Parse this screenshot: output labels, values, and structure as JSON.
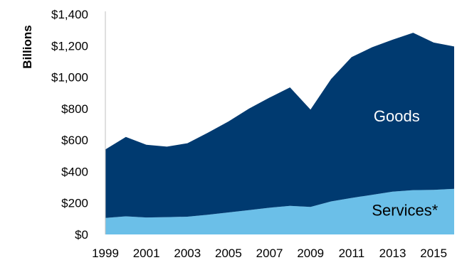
{
  "chart_data": {
    "type": "area",
    "stacked": true,
    "ylabel": "Billions",
    "ylim": [
      0,
      1400
    ],
    "yticks": [
      0,
      200,
      400,
      600,
      800,
      1000,
      1200,
      1400
    ],
    "ytick_labels": [
      "$0",
      "$200",
      "$400",
      "$600",
      "$800",
      "$1,000",
      "$1,200",
      "$1,400"
    ],
    "x": [
      1999,
      2000,
      2001,
      2002,
      2003,
      2004,
      2005,
      2006,
      2007,
      2008,
      2009,
      2010,
      2011,
      2012,
      2013,
      2014,
      2015,
      2016
    ],
    "xtick_labels": [
      "1999",
      "2001",
      "2003",
      "2005",
      "2007",
      "2009",
      "2011",
      "2013",
      "2015"
    ],
    "grid": false,
    "series": [
      {
        "name": "Services*",
        "color": "#6bbfe8",
        "label_color": "#000000",
        "values": [
          105,
          115,
          108,
          110,
          113,
          125,
          140,
          155,
          170,
          182,
          175,
          210,
          232,
          252,
          272,
          282,
          283,
          290
        ]
      },
      {
        "name": "Goods",
        "color": "#003a70",
        "label_color": "#ffffff",
        "values": [
          435,
          505,
          462,
          448,
          467,
          522,
          578,
          645,
          700,
          753,
          619,
          778,
          895,
          938,
          966,
          1000,
          937,
          905
        ]
      }
    ]
  }
}
